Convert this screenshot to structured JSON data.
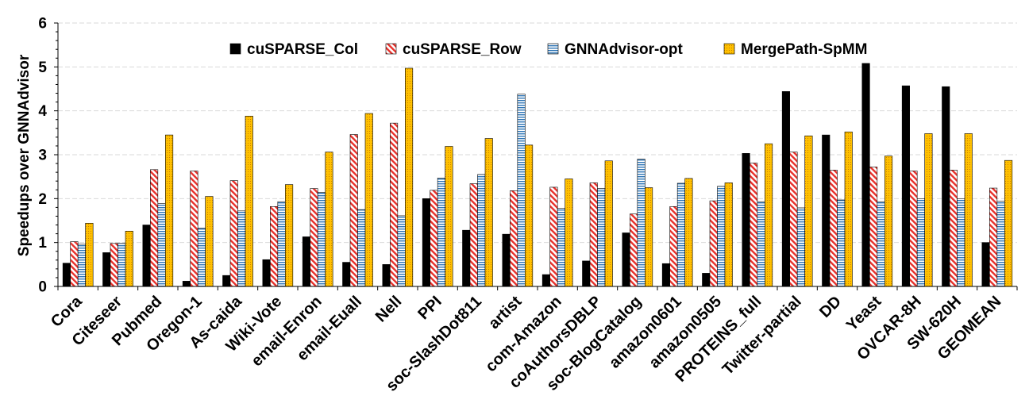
{
  "chart_data": {
    "type": "bar",
    "title": "",
    "xlabel": "",
    "ylabel": "Speedups over GNNAdvisor",
    "ylim": [
      0,
      6
    ],
    "yticks": [
      "0",
      "1",
      "2",
      "3",
      "4",
      "5",
      "6"
    ],
    "grid": true,
    "legend_position": "top",
    "categories": [
      "Cora",
      "Citeseer",
      "Pubmed",
      "Oregon-1",
      "As-caida",
      "Wiki-Vote",
      "email-Enron",
      "email-Euall",
      "Nell",
      "PPI",
      "soc-SlashDot811",
      "artist",
      "com-Amazon",
      "coAuthorsDBLP",
      "soc-BlogCatalog",
      "amazon0601",
      "amazon0505",
      "PROTEINS_full",
      "Twitter-partial",
      "DD",
      "Yeast",
      "OVCAR-8H",
      "SW-620H",
      "GEOMEAN"
    ],
    "series": [
      {
        "name": "cuSPARSE_Col",
        "color": "#000000",
        "pattern": "solid",
        "values": [
          0.53,
          0.77,
          1.4,
          0.12,
          0.25,
          0.61,
          1.13,
          0.55,
          0.5,
          2.0,
          1.28,
          1.19,
          0.27,
          0.58,
          1.22,
          0.52,
          0.3,
          3.03,
          4.44,
          3.45,
          5.08,
          4.57,
          4.55,
          1.0
        ]
      },
      {
        "name": "cuSPARSE_Row",
        "color": "#e8302a",
        "pattern": "diagonal-hatch",
        "values": [
          1.02,
          0.98,
          2.66,
          2.63,
          2.41,
          1.82,
          2.23,
          3.46,
          3.72,
          2.19,
          2.34,
          2.18,
          2.26,
          2.36,
          1.65,
          1.82,
          1.95,
          2.81,
          3.06,
          2.65,
          2.72,
          2.63,
          2.65,
          2.24
        ]
      },
      {
        "name": "GNNAdvisor-opt",
        "color": "#2e75b6",
        "pattern": "horizontal-hatch",
        "values": [
          0.96,
          0.98,
          1.89,
          1.33,
          1.72,
          1.93,
          2.14,
          1.75,
          1.61,
          2.47,
          2.55,
          4.38,
          1.78,
          2.23,
          2.9,
          2.35,
          2.28,
          1.93,
          1.79,
          1.97,
          1.93,
          2.0,
          2.0,
          1.94
        ]
      },
      {
        "name": "MergePath-SpMM",
        "color": "#ffc000",
        "pattern": "dotted",
        "values": [
          1.44,
          1.26,
          3.45,
          2.05,
          3.88,
          2.32,
          3.06,
          3.94,
          4.97,
          3.19,
          3.37,
          3.22,
          2.45,
          2.86,
          2.25,
          2.46,
          2.36,
          3.25,
          3.43,
          3.52,
          2.97,
          3.48,
          3.48,
          2.87
        ]
      }
    ]
  }
}
